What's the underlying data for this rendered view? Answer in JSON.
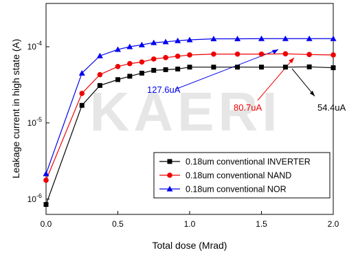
{
  "chart_data": {
    "type": "line",
    "watermark": "KAERI",
    "x_label": "Total dose (Mrad)",
    "y_label": "Leakage current in high state (A)",
    "x": [
      0,
      0.25,
      0.375,
      0.5,
      0.583,
      0.667,
      0.75,
      0.833,
      0.917,
      1.0,
      1.167,
      1.333,
      1.5,
      1.667,
      1.833,
      2.0
    ],
    "series": [
      {
        "name": "0.18um conventional INVERTER",
        "color": "#000000",
        "marker": "square",
        "values": [
          8.5e-07,
          1.7e-05,
          3.1e-05,
          3.7e-05,
          4.1e-05,
          4.5e-05,
          4.9e-05,
          5e-05,
          5.1e-05,
          5.4e-05,
          5.4e-05,
          5.4e-05,
          5.4e-05,
          5.4e-05,
          5.44e-05,
          5.3e-05
        ]
      },
      {
        "name": "0.18um conventional NAND",
        "color": "#ee0000",
        "marker": "circle",
        "values": [
          1.77e-06,
          2.44e-05,
          4.3e-05,
          5.5e-05,
          6e-05,
          6.3e-05,
          6.9e-05,
          7.2e-05,
          7.5e-05,
          7.8e-05,
          8e-05,
          8e-05,
          8e-05,
          8.07e-05,
          7.9e-05,
          7.8e-05
        ]
      },
      {
        "name": "0.18um conventional NOR",
        "color": "#0000ee",
        "marker": "triangle",
        "values": [
          2.15e-06,
          4.5e-05,
          7.6e-05,
          9.2e-05,
          0.0001,
          0.000106,
          0.000113,
          0.000116,
          0.00012,
          0.000123,
          0.000127,
          0.000127,
          0.0001276,
          0.0001276,
          0.0001276,
          0.0001276
        ]
      }
    ],
    "annotations": [
      {
        "text": "127.6uA",
        "color": "#0000ee"
      },
      {
        "text": "80.7uA",
        "color": "#ee0000"
      },
      {
        "text": "54.4uA",
        "color": "#000000"
      }
    ],
    "xlim": [
      0,
      2.0
    ],
    "xticks": [
      {
        "value": 0,
        "label": "0.0"
      },
      0.5,
      {
        "value": 1.0,
        "label": "1.0"
      },
      1.5,
      {
        "value": 2.0,
        "label": "2.0"
      }
    ],
    "ylim": [
      6.3e-07,
      0.00037
    ],
    "yticks": [
      {
        "value": 1e-06,
        "label": "10-6"
      },
      {
        "value": 1e-05,
        "label": "10-5"
      },
      {
        "value": 0.0001,
        "label": "10-4"
      }
    ],
    "y_log": true,
    "legend": "lower right"
  }
}
